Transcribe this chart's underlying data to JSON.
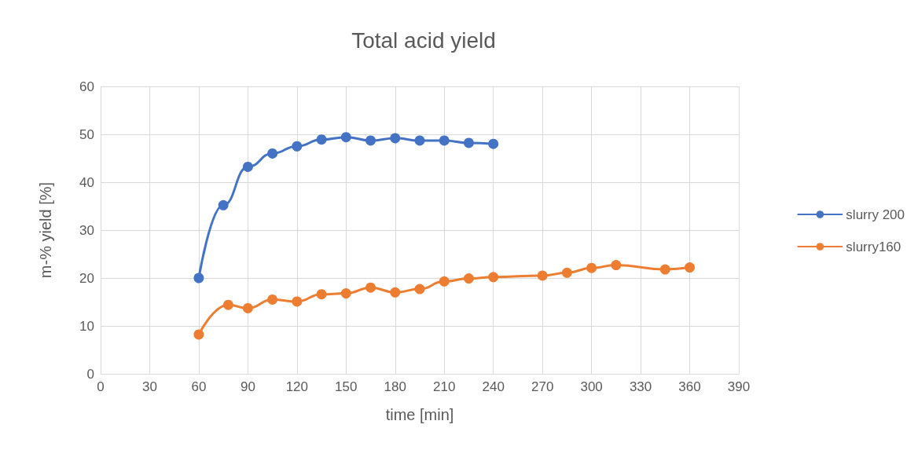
{
  "chart_data": {
    "type": "line",
    "title": "Total acid yield",
    "xlabel": "time [min]",
    "ylabel": "m-% yield [%]",
    "xlim": [
      0,
      390
    ],
    "xticks": [
      0,
      30,
      60,
      90,
      120,
      150,
      180,
      210,
      240,
      270,
      300,
      330,
      360,
      390
    ],
    "ylim": [
      0,
      60
    ],
    "yticks": [
      0,
      10,
      20,
      30,
      40,
      50,
      60
    ],
    "grid": true,
    "legend": "right",
    "marker": "circle",
    "line_style": "solid",
    "series": [
      {
        "name": "slurry 200",
        "color": "#4472c4",
        "x": [
          60,
          75,
          90,
          105,
          120,
          135,
          150,
          165,
          180,
          195,
          210,
          225,
          240
        ],
        "values": [
          20,
          35.2,
          43.2,
          46,
          47.5,
          48.9,
          49.4,
          48.7,
          49.2,
          48.7,
          48.7,
          48.2,
          48
        ]
      },
      {
        "name": "slurry160",
        "color": "#ed7d31",
        "x": [
          60,
          78,
          90,
          105,
          120,
          135,
          150,
          165,
          180,
          195,
          210,
          225,
          240,
          270,
          285,
          300,
          315,
          345,
          360
        ],
        "values": [
          8.2,
          14.4,
          13.7,
          15.5,
          15.1,
          16.6,
          16.8,
          18,
          17,
          17.7,
          19.3,
          19.9,
          20.2,
          20.5,
          21.1,
          22.1,
          22.7,
          21.8,
          22.2
        ]
      }
    ]
  }
}
